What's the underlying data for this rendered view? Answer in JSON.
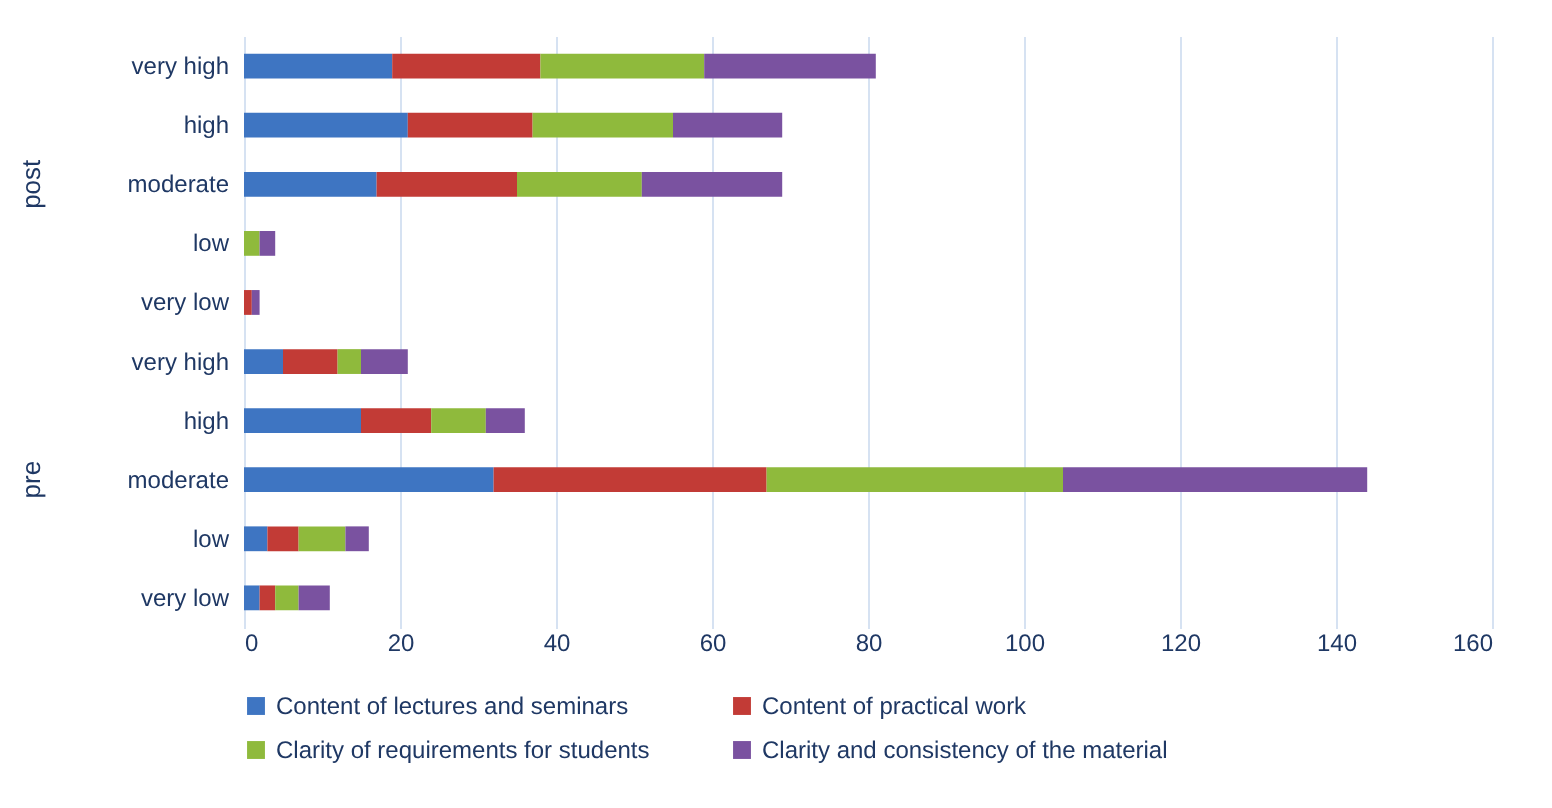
{
  "chart_data": {
    "type": "bar",
    "orientation": "horizontal",
    "stacked": true,
    "categories": [
      "very high",
      "high",
      "moderate",
      "low",
      "very low",
      "very high",
      "high",
      "moderate",
      "low",
      "very low"
    ],
    "annotations": [
      "post",
      "pre"
    ],
    "series": [
      {
        "name": "Content of lectures and seminars",
        "color": "#3e75c2",
        "values": [
          19,
          21,
          17,
          0,
          0,
          5,
          15,
          32,
          3,
          2
        ]
      },
      {
        "name": "Content of practical work",
        "color": "#c23b36",
        "values": [
          19,
          16,
          18,
          0,
          1,
          7,
          9,
          35,
          4,
          2
        ]
      },
      {
        "name": "Clarity of requirements for students",
        "color": "#8fba3c",
        "values": [
          21,
          18,
          16,
          2,
          0,
          3,
          7,
          38,
          6,
          3
        ]
      },
      {
        "name": "Clarity and consistency of the material",
        "color": "#7a52a0",
        "values": [
          22,
          14,
          18,
          2,
          1,
          6,
          5,
          39,
          3,
          4
        ]
      }
    ],
    "xlim": [
      0,
      160
    ],
    "xticks": [
      0,
      20,
      40,
      60,
      80,
      100,
      120,
      140,
      160
    ],
    "grid": "x",
    "legend": "bottom"
  }
}
